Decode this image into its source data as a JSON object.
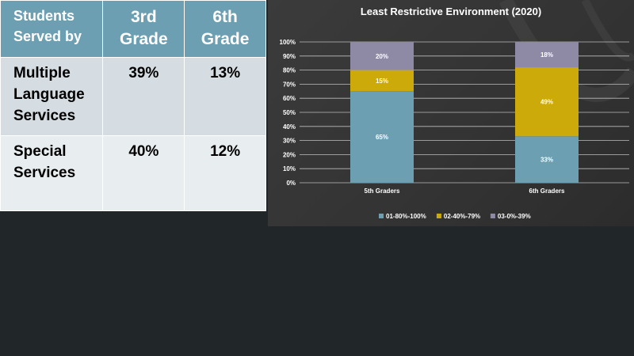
{
  "table": {
    "header": {
      "label": "Students Served by",
      "col1": "3rd Grade",
      "col2": "6th Grade"
    },
    "rows": [
      {
        "label": "Multiple Language Services",
        "col1": "39%",
        "col2": "13%"
      },
      {
        "label": "Special Services",
        "col1": "40%",
        "col2": "12%"
      }
    ]
  },
  "chart_data": {
    "type": "bar",
    "stacked": true,
    "title": "Least Restrictive Environment (2020)",
    "xlabel": "",
    "ylabel": "",
    "ylim": [
      0,
      100
    ],
    "yticks": [
      "0%",
      "10%",
      "20%",
      "30%",
      "40%",
      "50%",
      "60%",
      "70%",
      "80%",
      "90%",
      "100%"
    ],
    "categories": [
      "5th Graders",
      "6th Graders"
    ],
    "series": [
      {
        "name": "01-80%-100%",
        "values": [
          65,
          33
        ],
        "labels": [
          "65%",
          "33%"
        ],
        "color": "#6d9fb2"
      },
      {
        "name": "02-40%-79%",
        "values": [
          15,
          49
        ],
        "labels": [
          "15%",
          "49%"
        ],
        "color": "#ccaa0a"
      },
      {
        "name": "03-0%-39%",
        "values": [
          20,
          18
        ],
        "labels": [
          "20%",
          "18%"
        ],
        "color": "#8e8aa5"
      }
    ],
    "grid": true,
    "legend": "bottom"
  }
}
